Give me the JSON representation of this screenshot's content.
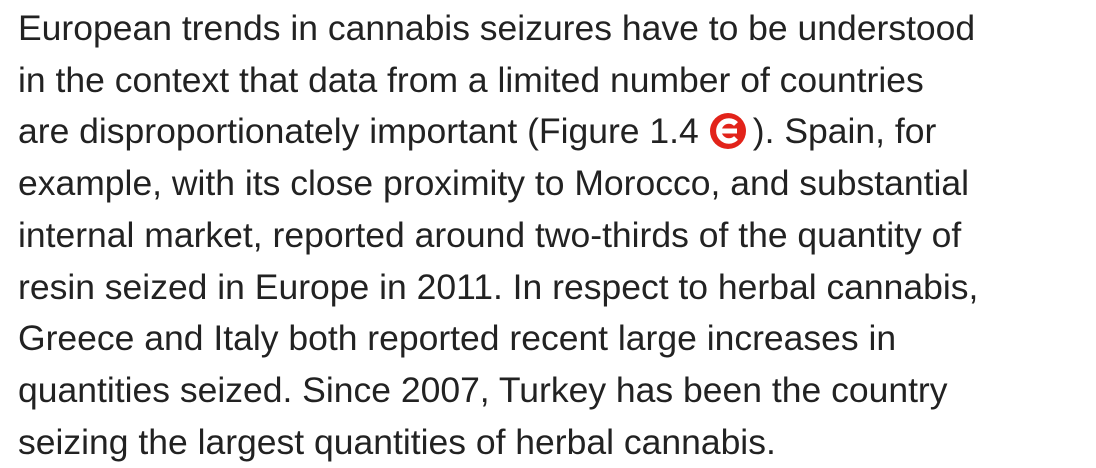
{
  "paragraph": {
    "lines": [
      "European trends in cannabis seizures have to be understood",
      "in the context that data from a limited number of countries",
      {
        "before": "are disproportionately important (Figure 1.4",
        "after": "). Spain, for"
      },
      "example, with its close proximity to Morocco, and substantial",
      "internal market, reported around two-thirds of the quantity of",
      "resin seized in Europe in 2011. In respect to herbal cannabis,",
      "Greece and Italy both reported recent large increases in",
      "quantities seized. Since 2007, Turkey has been the country",
      "seizing the largest quantities of herbal cannabis."
    ]
  }
}
